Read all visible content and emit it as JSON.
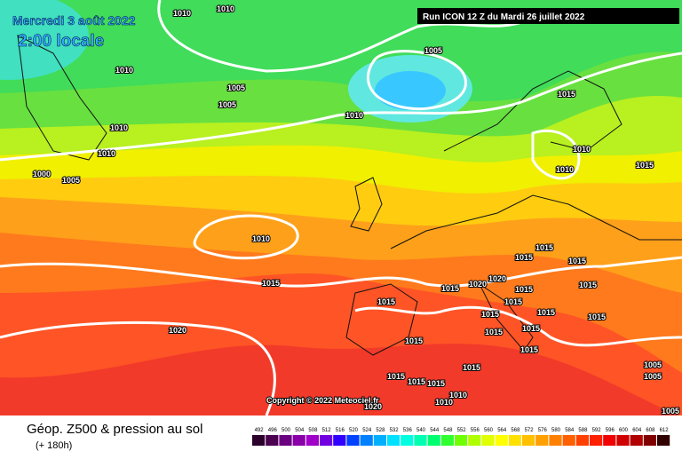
{
  "header": {
    "date": "Mercredi 3 août 2022",
    "time": "2:00 locale",
    "run": "Run ICON 12 Z du Mardi 26 juillet 2022"
  },
  "isobar_labels": [
    "1010",
    "1010",
    "1005",
    "1010",
    "1005",
    "1005",
    "1010",
    "1015",
    "1010",
    "1010",
    "1010",
    "1010",
    "1015",
    "1000",
    "1005",
    "1010",
    "1015",
    "1015",
    "1015",
    "1015",
    "1015",
    "1020",
    "1020",
    "1015",
    "1015",
    "1015",
    "1015",
    "1015",
    "1015",
    "1015",
    "1020",
    "1015",
    "1015",
    "1015",
    "1015",
    "1015",
    "1005",
    "1005",
    "1015",
    "1015",
    "1015",
    "1010",
    "1010",
    "1005",
    "1020"
  ],
  "copyright": "Copyright © 2022 Meteociel.fr",
  "footer": {
    "title": "Géop. Z500 & pression au sol",
    "lead": "(+ 180h)",
    "scale": [
      492,
      496,
      500,
      504,
      508,
      512,
      516,
      520,
      524,
      528,
      532,
      536,
      540,
      544,
      548,
      552,
      556,
      560,
      564,
      568,
      572,
      576,
      580,
      584,
      588,
      592,
      596,
      600,
      604,
      608,
      612
    ],
    "scale_colors": [
      "#2b002b",
      "#4b0050",
      "#6b0080",
      "#8a00a8",
      "#a000c8",
      "#7000e0",
      "#3000ff",
      "#0040ff",
      "#0080ff",
      "#00b0ff",
      "#00e0ff",
      "#00ffe0",
      "#00ffb0",
      "#00ff70",
      "#30ff30",
      "#70ff00",
      "#b0ff00",
      "#e0ff00",
      "#ffff00",
      "#ffe000",
      "#ffc000",
      "#ffa000",
      "#ff8000",
      "#ff6000",
      "#ff4000",
      "#ff2000",
      "#f00000",
      "#d00000",
      "#b00000",
      "#800000",
      "#300000"
    ]
  }
}
